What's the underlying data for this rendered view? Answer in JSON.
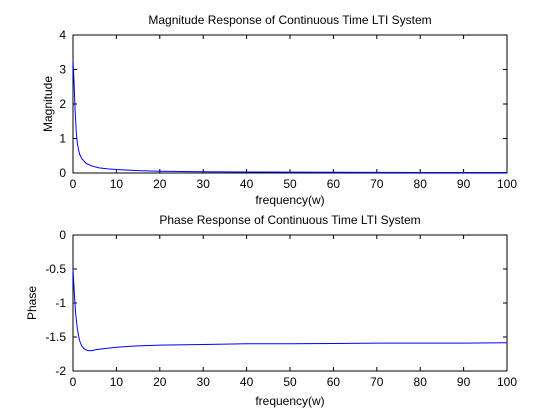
{
  "chart_data": [
    {
      "type": "line",
      "title": "Magnitude Response of Continuous Time LTI System",
      "xlabel": "frequency(w)",
      "ylabel": "Magnitude",
      "xlim": [
        0,
        100
      ],
      "ylim": [
        0,
        4
      ],
      "xticks": [
        0,
        10,
        20,
        30,
        40,
        50,
        60,
        70,
        80,
        90,
        100
      ],
      "yticks": [
        0,
        1,
        2,
        3,
        4
      ],
      "ytick_labels": [
        "0",
        "1",
        "2",
        "3",
        "4"
      ],
      "grid": false,
      "line_color": "#0000ff",
      "series": [
        {
          "x": [
            0,
            0.25,
            0.5,
            0.75,
            1,
            1.5,
            2,
            3,
            4,
            5,
            6,
            8,
            10,
            15,
            20,
            30,
            40,
            50,
            60,
            70,
            80,
            90,
            100
          ],
          "values": [
            3.3,
            2.6,
            1.8,
            1.2,
            0.85,
            0.55,
            0.42,
            0.28,
            0.22,
            0.18,
            0.15,
            0.12,
            0.1,
            0.07,
            0.05,
            0.035,
            0.03,
            0.025,
            0.02,
            0.018,
            0.016,
            0.015,
            0.013
          ]
        }
      ]
    },
    {
      "type": "line",
      "title": "Phase Response of Continuous Time LTI System",
      "xlabel": "frequency(w)",
      "ylabel": "Phase",
      "xlim": [
        0,
        100
      ],
      "ylim": [
        -2,
        0
      ],
      "xticks": [
        0,
        10,
        20,
        30,
        40,
        50,
        60,
        70,
        80,
        90,
        100
      ],
      "yticks": [
        0,
        -0.5,
        -1,
        -1.5,
        -2
      ],
      "ytick_labels": [
        "0",
        "-0.5",
        "-1",
        "-1.5",
        "-2"
      ],
      "grid": false,
      "line_color": "#0000ff",
      "series": [
        {
          "x": [
            0,
            0.3,
            0.6,
            1,
            1.5,
            2,
            2.5,
            3,
            3.5,
            4,
            4.5,
            5,
            6,
            8,
            10,
            15,
            20,
            30,
            40,
            50,
            60,
            70,
            80,
            90,
            100
          ],
          "values": [
            -0.5,
            -0.85,
            -1.15,
            -1.38,
            -1.55,
            -1.63,
            -1.67,
            -1.69,
            -1.7,
            -1.7,
            -1.7,
            -1.69,
            -1.68,
            -1.665,
            -1.65,
            -1.63,
            -1.62,
            -1.61,
            -1.6,
            -1.6,
            -1.595,
            -1.59,
            -1.59,
            -1.59,
            -1.585
          ]
        }
      ]
    }
  ]
}
